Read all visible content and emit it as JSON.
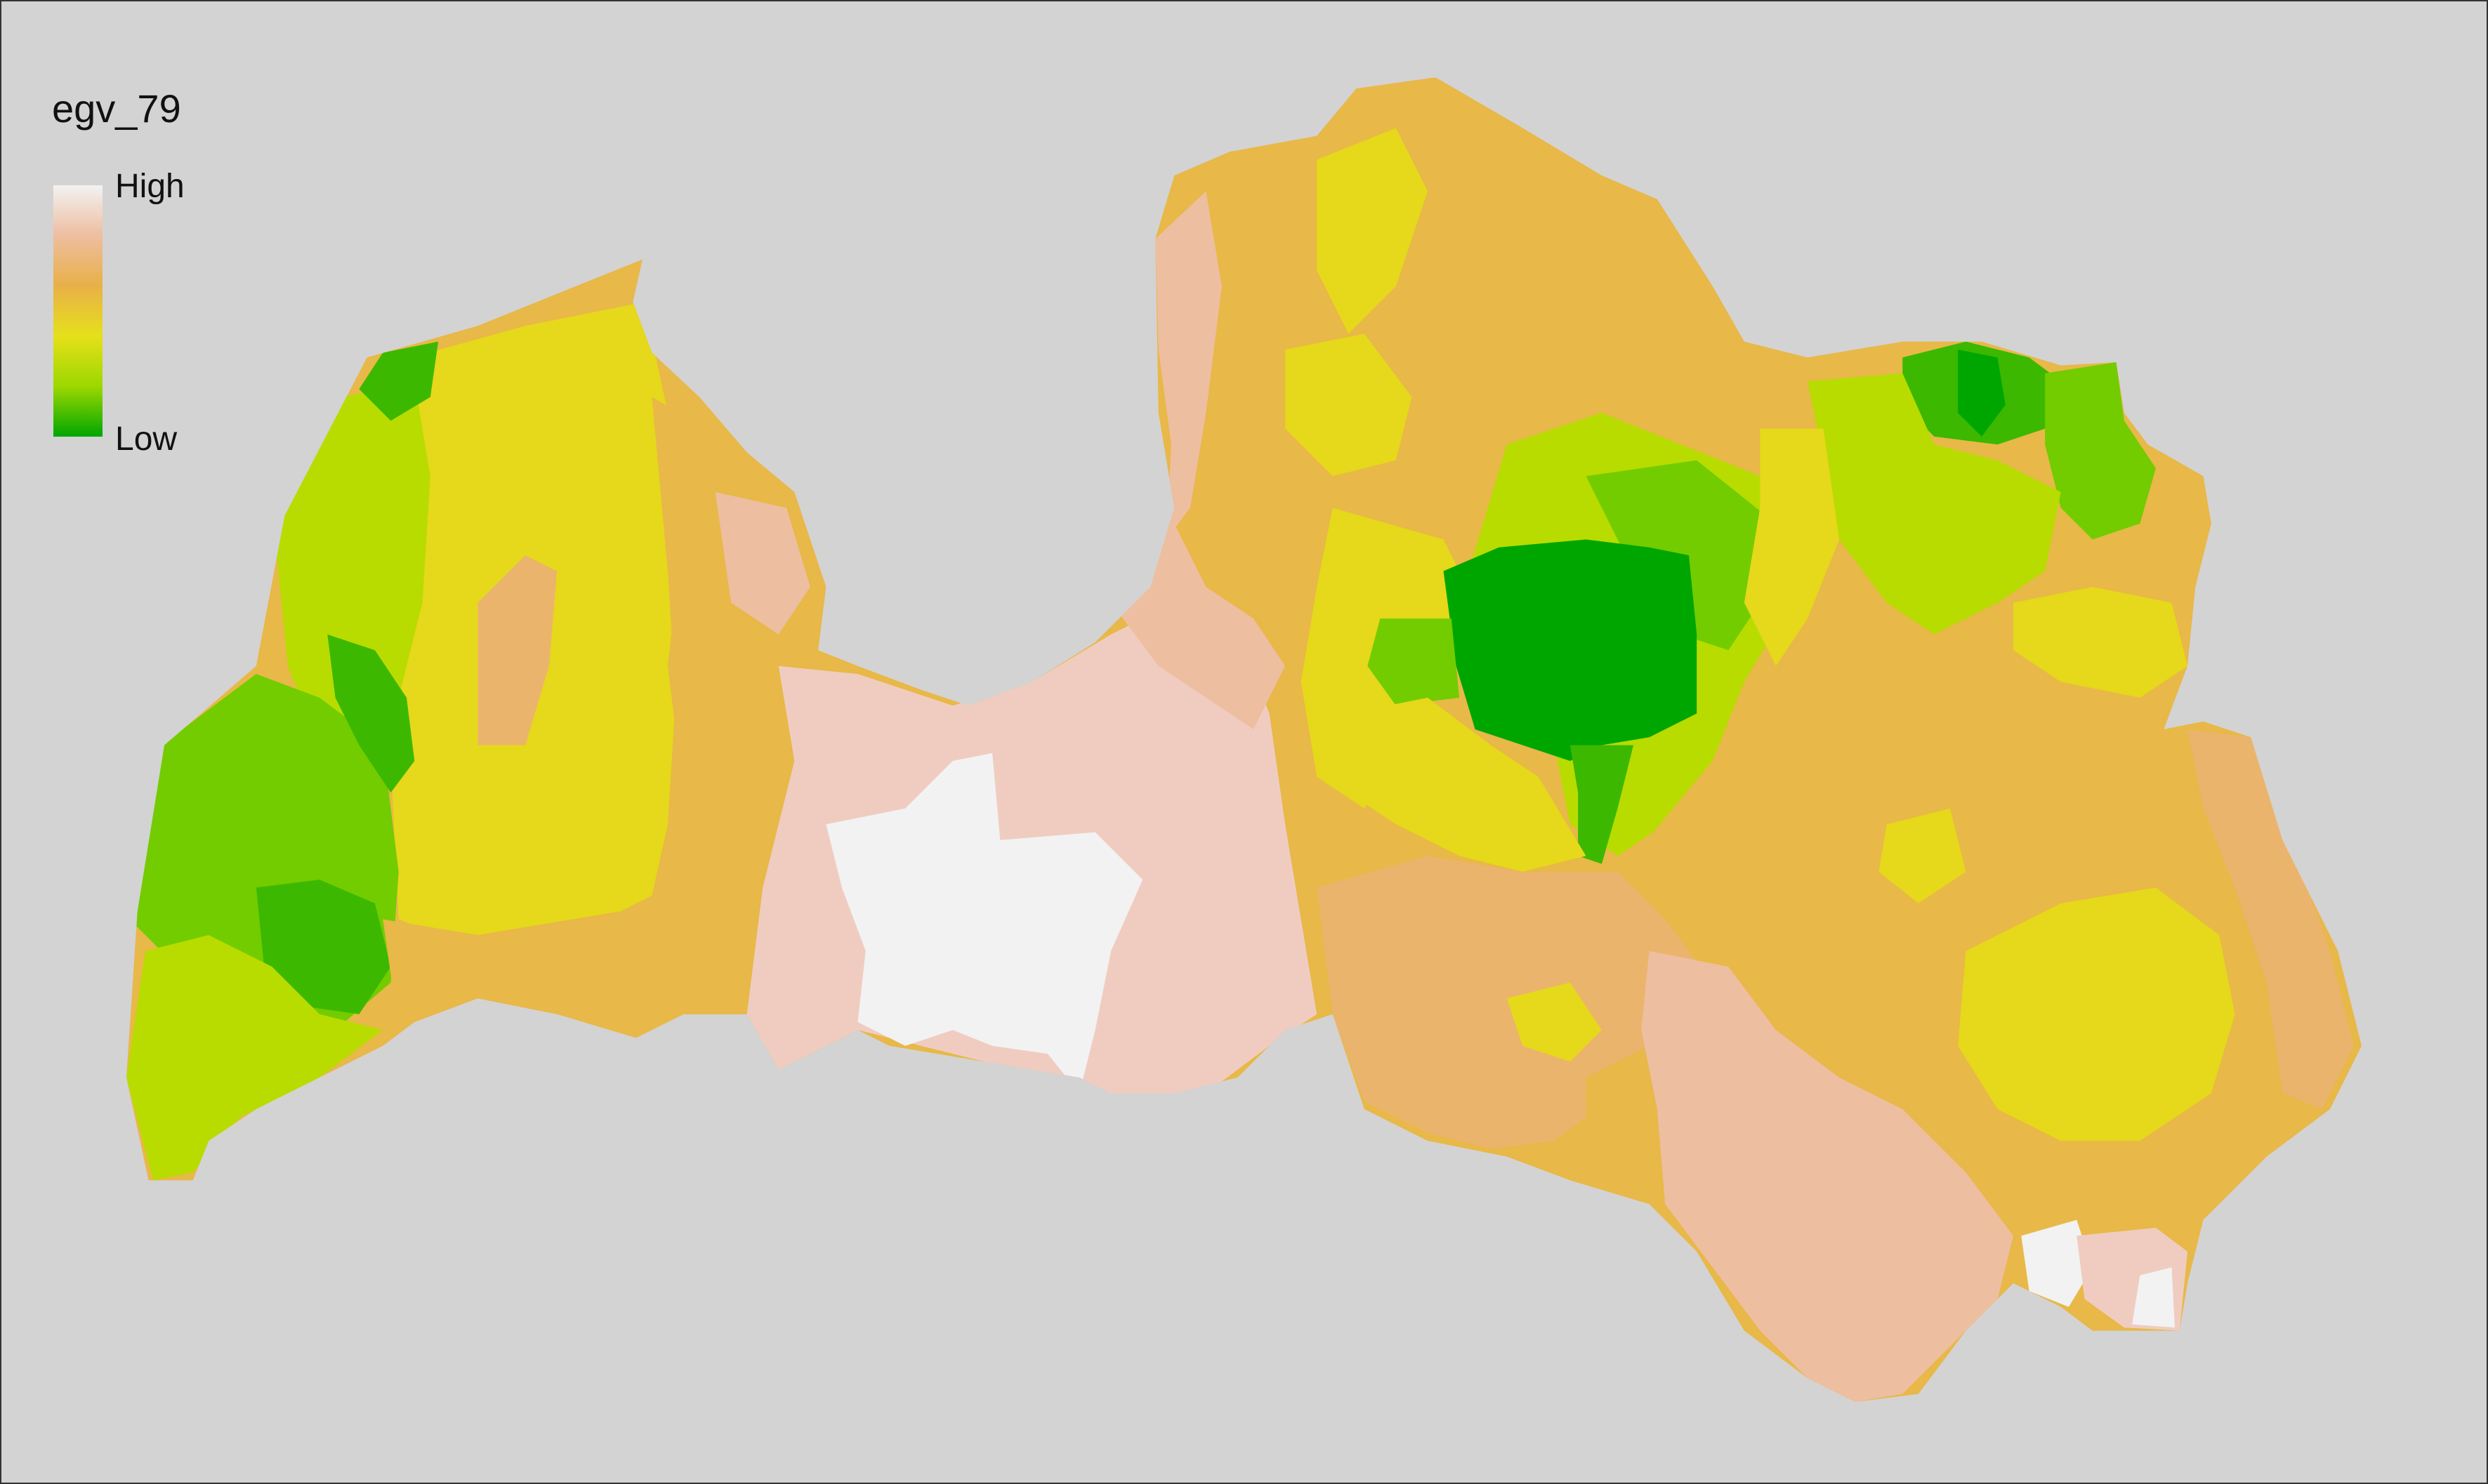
{
  "map": {
    "legend": {
      "title": "egv_79",
      "high_label": "High",
      "low_label": "Low",
      "gradient": [
        "#f2f2f2",
        "#eebea0",
        "#e8b048",
        "#e6e01a",
        "#9cd800",
        "#00a600"
      ]
    },
    "colors": {
      "background": "#d3d3d3",
      "frame_border": "#333333",
      "outline": "#e8b848"
    },
    "zones": [
      {
        "id": "west-coast-low",
        "value": 0.15
      },
      {
        "id": "kurzeme-central",
        "value": 0.4
      },
      {
        "id": "kurzeme-east",
        "value": 0.55
      },
      {
        "id": "riga-area-high",
        "value": 0.85
      },
      {
        "id": "zemgale-high",
        "value": 0.95
      },
      {
        "id": "vidzeme-north",
        "value": 0.55
      },
      {
        "id": "vidzeme-central-lowest",
        "value": 0.02
      },
      {
        "id": "vidzeme-northeast-low",
        "value": 0.2
      },
      {
        "id": "latgale-east",
        "value": 0.5
      },
      {
        "id": "southeast-high",
        "value": 0.8
      }
    ]
  }
}
